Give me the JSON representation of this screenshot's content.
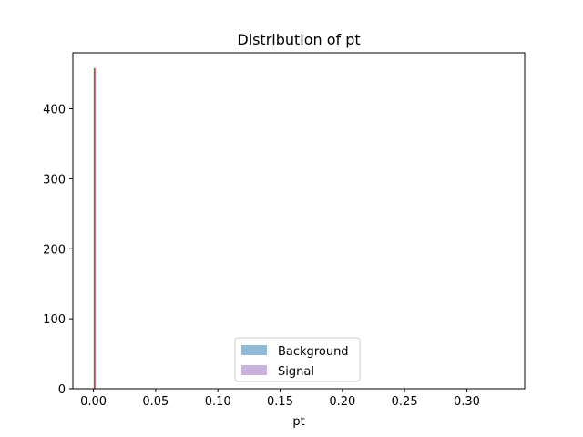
{
  "chart_data": {
    "type": "bar",
    "title": "Distribution of pt",
    "xlabel": "pt",
    "ylabel": "",
    "xlim": [
      -0.0165,
      0.3465
    ],
    "ylim": [
      0,
      480
    ],
    "x_ticks": [
      0.0,
      0.05,
      0.1,
      0.15,
      0.2,
      0.25,
      0.3
    ],
    "x_tick_labels": [
      "0.00",
      "0.05",
      "0.10",
      "0.15",
      "0.20",
      "0.25",
      "0.30"
    ],
    "y_ticks": [
      0,
      100,
      200,
      300,
      400
    ],
    "y_tick_labels": [
      "0",
      "100",
      "200",
      "300",
      "400"
    ],
    "grid": false,
    "legend_position": "lower-center",
    "series": [
      {
        "name": "Background",
        "color": "#1f77b4",
        "alpha": 0.5,
        "bins": [
          [
            0.0005,
            0.0012,
            458
          ]
        ]
      },
      {
        "name": "Signal",
        "color": "#9467bd",
        "alpha": 0.5,
        "bins": [
          [
            0.0005,
            0.0012,
            458
          ]
        ]
      }
    ],
    "edge_lines": [
      {
        "series": "Background",
        "x": 0.0006,
        "color": "#2ca02c"
      },
      {
        "series": "Signal",
        "x": 0.0012,
        "color": "#d62728"
      }
    ]
  }
}
